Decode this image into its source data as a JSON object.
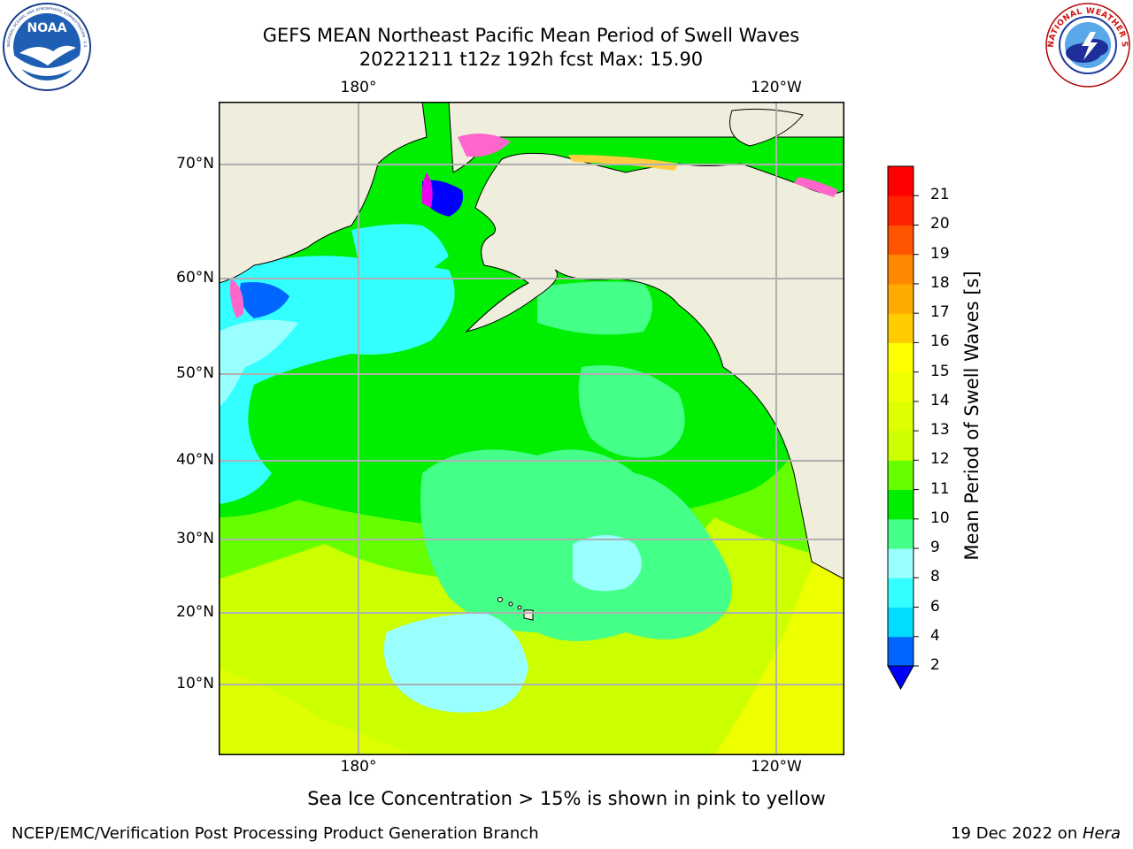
{
  "header": {
    "title_line1": "GEFS MEAN Northeast Pacific Mean Period of Swell Waves",
    "title_line2": "20221211 t12z 192h fcst   Max: 15.90"
  },
  "logos": {
    "noaa_text": "NOAA",
    "noaa_ring": "NATIONAL OCEANIC AND ATMOSPHERIC ADMINISTRATION · U.S. DEPARTMENT OF COMMERCE",
    "nws_ring": "NATIONAL WEATHER SERVICE"
  },
  "map": {
    "lon_labels_top": [
      "180°",
      "120°W"
    ],
    "lon_labels_bottom": [
      "180°",
      "120°W"
    ],
    "lat_labels": [
      "70°N",
      "60°N",
      "50°N",
      "40°N",
      "30°N",
      "20°N",
      "10°N"
    ],
    "colors": {
      "land": "#efeddc",
      "grid": "#b0b0b0",
      "ice_pink": "#ff66cc",
      "ice_magenta": "#ee00ee",
      "ice_yellow": "#ffcc44"
    }
  },
  "colorbar": {
    "label": "Mean Period of Swell Waves [s]",
    "ticks": [
      "2",
      "4",
      "6",
      "8",
      "9",
      "10",
      "11",
      "12",
      "13",
      "14",
      "15",
      "16",
      "17",
      "18",
      "19",
      "20",
      "21"
    ],
    "colors": [
      "#0066ff",
      "#00ddff",
      "#33ffff",
      "#99ffff",
      "#44ff88",
      "#00ee00",
      "#66ff00",
      "#ccff00",
      "#ddff00",
      "#eeff00",
      "#ffff00",
      "#ffcc00",
      "#ffaa00",
      "#ff8800",
      "#ff5500",
      "#ff2200",
      "#ff0000"
    ],
    "under_color": "#0000ff"
  },
  "footer": {
    "ice_note": "Sea Ice Concentration > 15% is shown in pink to yellow",
    "credit": "NCEP/EMC/Verification Post Processing Product Generation Branch",
    "date_prefix": "19 Dec 2022 on ",
    "date_machine": "Hera"
  }
}
